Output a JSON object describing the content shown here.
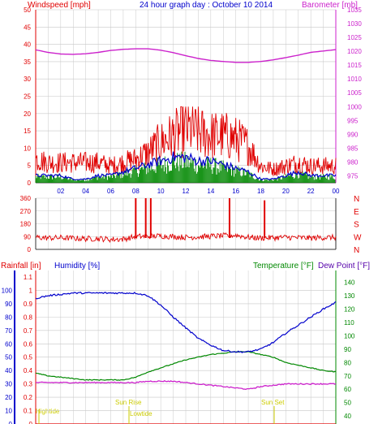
{
  "header": {
    "left_title": "Windspeed [mph]",
    "center_title": "24 hour graph day : October 10 2014",
    "right_title": "Barometer [mb]"
  },
  "colors": {
    "red": "#e00000",
    "magenta": "#cc22cc",
    "blue": "#0000cc",
    "green": "#008800",
    "purple": "#5500aa",
    "yellow": "#cccc00",
    "grid": "#c8c8c8"
  },
  "chart_data": [
    {
      "type": "line",
      "name": "wind-barometer",
      "xlabel": "",
      "x_ticks": [
        "02",
        "04",
        "06",
        "08",
        "10",
        "12",
        "14",
        "16",
        "18",
        "20",
        "22",
        "00"
      ],
      "y_left": {
        "label": "Windspeed [mph]",
        "ticks": [
          0,
          5,
          10,
          15,
          20,
          25,
          30,
          35,
          40,
          45,
          50
        ],
        "range": [
          0,
          50
        ]
      },
      "y_right": {
        "label": "Barometer [mb]",
        "ticks": [
          975,
          980,
          985,
          990,
          995,
          1000,
          1005,
          1010,
          1015,
          1020,
          1025,
          1030,
          1035
        ],
        "range": [
          972.5,
          1035
        ]
      },
      "gust_hourly": [
        7,
        6,
        6,
        6,
        6,
        6,
        5,
        6,
        7,
        9,
        12,
        14,
        16,
        15,
        14,
        14,
        13,
        11,
        5,
        4,
        5,
        6,
        5,
        5
      ],
      "speed_hourly": [
        2,
        2,
        2,
        1,
        1,
        2,
        2,
        3,
        4,
        5,
        6,
        7,
        7,
        6,
        6,
        5,
        4,
        3,
        1,
        1,
        2,
        3,
        2,
        2
      ],
      "barometer_hourly": [
        1020.5,
        1019.6,
        1019.0,
        1018.9,
        1019.1,
        1019.6,
        1020.3,
        1020.7,
        1020.9,
        1020.9,
        1020.4,
        1019.5,
        1018.4,
        1017.4,
        1016.7,
        1016.3,
        1016.0,
        1016.0,
        1016.3,
        1016.9,
        1017.7,
        1018.6,
        1019.6,
        1020.1
      ],
      "grid": true
    },
    {
      "type": "line",
      "name": "wind-direction",
      "y_ticks": [
        0,
        90,
        180,
        270,
        360
      ],
      "dir_labels": [
        "N",
        "W",
        "S",
        "E",
        "N"
      ],
      "baseline_hourly": [
        85,
        80,
        82,
        78,
        75,
        76,
        70,
        72,
        90,
        92,
        95,
        90,
        85,
        88,
        92,
        95,
        100,
        85,
        80,
        82,
        85,
        82,
        80,
        84
      ],
      "spikes": [
        {
          "hour": 8.0,
          "value": 360
        },
        {
          "hour": 8.8,
          "value": 360
        },
        {
          "hour": 9.2,
          "value": 360
        },
        {
          "hour": 15.5,
          "value": 360
        },
        {
          "hour": 18.3,
          "value": 345
        }
      ]
    },
    {
      "type": "line",
      "name": "temp-humidity-rain",
      "left_labels": [
        "Rainfall [in]",
        "Humidity [%]"
      ],
      "right_labels": [
        "Temperature [°F]",
        "Dew Point [°F]"
      ],
      "humidity_ticks": [
        0,
        10,
        20,
        30,
        40,
        50,
        60,
        70,
        80,
        90,
        100
      ],
      "rain_ticks": [
        0,
        0.1,
        0.2,
        0.3,
        0.4,
        0.5,
        0.6,
        0.7,
        0.8,
        0.9,
        1,
        1.1
      ],
      "temp_ticks": [
        40,
        50,
        60,
        70,
        80,
        90,
        100,
        110,
        120,
        130,
        140
      ],
      "humidity_hourly": [
        94,
        96,
        97,
        98,
        98,
        98,
        98,
        98,
        98,
        96,
        89,
        80,
        72,
        64,
        59,
        55,
        54,
        54,
        56,
        61,
        68,
        74,
        80,
        86,
        91
      ],
      "temperature_hourly": [
        72,
        70,
        69,
        68,
        67,
        67,
        67,
        67,
        69,
        73,
        76,
        79,
        82,
        84,
        86,
        87,
        88,
        88,
        86,
        84,
        80,
        78,
        76,
        74,
        73
      ],
      "dewpoint_hourly": [
        65,
        65,
        65,
        65,
        65,
        65,
        65,
        65,
        65,
        66,
        66,
        66,
        65,
        64,
        63,
        62,
        61,
        60,
        62,
        63,
        64,
        64,
        64,
        64,
        64
      ],
      "rain_hourly": [
        0,
        0,
        0,
        0,
        0,
        0,
        0,
        0,
        0,
        0,
        0,
        0,
        0,
        0,
        0,
        0,
        0,
        0,
        0,
        0,
        0,
        0,
        0,
        0,
        0
      ],
      "annotations": {
        "tide1": "Hightide",
        "sunrise": "Sun Rise",
        "tide2": "Lowtide",
        "sunset": "Sun Set"
      }
    }
  ]
}
